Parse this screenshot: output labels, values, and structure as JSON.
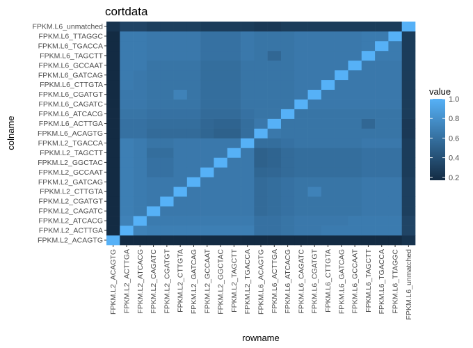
{
  "chart_data": {
    "type": "heatmap",
    "title": "cortdata",
    "xlabel": "rowname",
    "ylabel": "colname",
    "x_categories": [
      "FPKM.L2_ACAGTG",
      "FPKM.L2_ACTTGA",
      "FPKM.L2_ATCACG",
      "FPKM.L2_CAGATC",
      "FPKM.L2_CGATGT",
      "FPKM.L2_CTTGTA",
      "FPKM.L2_GATCAG",
      "FPKM.L2_GCCAAT",
      "FPKM.L2_GGCTAC",
      "FPKM.L2_TAGCTT",
      "FPKM.L2_TGACCA",
      "FPKM.L6_ACAGTG",
      "FPKM.L6_ACTTGA",
      "FPKM.L6_ATCACG",
      "FPKM.L6_CAGATC",
      "FPKM.L6_CGATGT",
      "FPKM.L6_CTTGTA",
      "FPKM.L6_GATCAG",
      "FPKM.L6_GCCAAT",
      "FPKM.L6_TAGCTT",
      "FPKM.L6_TGACCA",
      "FPKM.L6_TTAGGC",
      "FPKM.L6_unmatched"
    ],
    "y_categories": [
      "FPKM.L2_ACAGTG",
      "FPKM.L2_ACTTGA",
      "FPKM.L2_ATCACG",
      "FPKM.L2_CAGATC",
      "FPKM.L2_CGATGT",
      "FPKM.L2_CTTGTA",
      "FPKM.L2_GATCAG",
      "FPKM.L2_GCCAAT",
      "FPKM.L2_GGCTAC",
      "FPKM.L2_TAGCTT",
      "FPKM.L2_TGACCA",
      "FPKM.L6_ACAGTG",
      "FPKM.L6_ACTTGA",
      "FPKM.L6_ATCACG",
      "FPKM.L6_CAGATC",
      "FPKM.L6_CGATGT",
      "FPKM.L6_CTTGTA",
      "FPKM.L6_GATCAG",
      "FPKM.L6_GCCAAT",
      "FPKM.L6_TAGCTT",
      "FPKM.L6_TGACCA",
      "FPKM.L6_TTAGGC",
      "FPKM.L6_unmatched"
    ],
    "values": [
      [
        1.0,
        0.2,
        0.2,
        0.2,
        0.2,
        0.2,
        0.2,
        0.2,
        0.2,
        0.2,
        0.2,
        0.2,
        0.2,
        0.2,
        0.2,
        0.2,
        0.2,
        0.2,
        0.2,
        0.2,
        0.2,
        0.2,
        0.25
      ],
      [
        0.2,
        1.0,
        0.72,
        0.7,
        0.7,
        0.7,
        0.7,
        0.7,
        0.7,
        0.7,
        0.7,
        0.62,
        0.62,
        0.64,
        0.66,
        0.66,
        0.68,
        0.68,
        0.68,
        0.68,
        0.68,
        0.68,
        0.35
      ],
      [
        0.2,
        0.72,
        1.0,
        0.68,
        0.68,
        0.68,
        0.68,
        0.68,
        0.68,
        0.68,
        0.68,
        0.62,
        0.62,
        0.64,
        0.66,
        0.66,
        0.66,
        0.66,
        0.68,
        0.68,
        0.68,
        0.68,
        0.35
      ],
      [
        0.2,
        0.7,
        0.68,
        1.0,
        0.66,
        0.66,
        0.66,
        0.66,
        0.66,
        0.66,
        0.66,
        0.58,
        0.6,
        0.62,
        0.64,
        0.64,
        0.64,
        0.64,
        0.64,
        0.66,
        0.66,
        0.66,
        0.32
      ],
      [
        0.2,
        0.7,
        0.68,
        0.66,
        1.0,
        0.66,
        0.66,
        0.66,
        0.66,
        0.66,
        0.66,
        0.58,
        0.6,
        0.62,
        0.64,
        0.64,
        0.64,
        0.64,
        0.64,
        0.66,
        0.66,
        0.66,
        0.32
      ],
      [
        0.2,
        0.7,
        0.68,
        0.66,
        0.66,
        1.0,
        0.66,
        0.66,
        0.66,
        0.66,
        0.66,
        0.58,
        0.6,
        0.62,
        0.64,
        0.72,
        0.64,
        0.64,
        0.64,
        0.66,
        0.66,
        0.66,
        0.32
      ],
      [
        0.2,
        0.7,
        0.68,
        0.66,
        0.66,
        0.66,
        1.0,
        0.66,
        0.66,
        0.66,
        0.66,
        0.58,
        0.6,
        0.62,
        0.64,
        0.64,
        0.64,
        0.64,
        0.64,
        0.66,
        0.66,
        0.66,
        0.32
      ],
      [
        0.2,
        0.7,
        0.68,
        0.62,
        0.62,
        0.66,
        0.66,
        1.0,
        0.66,
        0.66,
        0.66,
        0.55,
        0.56,
        0.58,
        0.6,
        0.6,
        0.6,
        0.6,
        0.6,
        0.62,
        0.62,
        0.62,
        0.3
      ],
      [
        0.2,
        0.7,
        0.68,
        0.62,
        0.62,
        0.66,
        0.66,
        0.66,
        1.0,
        0.66,
        0.66,
        0.52,
        0.54,
        0.58,
        0.6,
        0.6,
        0.6,
        0.6,
        0.6,
        0.62,
        0.62,
        0.62,
        0.3
      ],
      [
        0.2,
        0.7,
        0.68,
        0.6,
        0.6,
        0.66,
        0.66,
        0.66,
        0.66,
        1.0,
        0.66,
        0.52,
        0.54,
        0.58,
        0.6,
        0.6,
        0.6,
        0.6,
        0.6,
        0.62,
        0.62,
        0.62,
        0.3
      ],
      [
        0.2,
        0.7,
        0.68,
        0.64,
        0.64,
        0.66,
        0.66,
        0.66,
        0.66,
        0.66,
        1.0,
        0.6,
        0.6,
        0.62,
        0.64,
        0.64,
        0.64,
        0.64,
        0.64,
        0.66,
        0.66,
        0.66,
        0.3
      ],
      [
        0.2,
        0.62,
        0.62,
        0.58,
        0.58,
        0.58,
        0.58,
        0.55,
        0.52,
        0.52,
        0.6,
        1.0,
        0.66,
        0.64,
        0.64,
        0.64,
        0.64,
        0.64,
        0.64,
        0.64,
        0.64,
        0.64,
        0.28
      ],
      [
        0.2,
        0.62,
        0.62,
        0.6,
        0.6,
        0.6,
        0.6,
        0.56,
        0.54,
        0.54,
        0.6,
        0.66,
        1.0,
        0.64,
        0.64,
        0.64,
        0.64,
        0.64,
        0.64,
        0.56,
        0.64,
        0.64,
        0.28
      ],
      [
        0.2,
        0.64,
        0.64,
        0.62,
        0.62,
        0.62,
        0.62,
        0.58,
        0.58,
        0.58,
        0.62,
        0.64,
        0.64,
        1.0,
        0.64,
        0.64,
        0.64,
        0.64,
        0.64,
        0.64,
        0.64,
        0.64,
        0.3
      ],
      [
        0.2,
        0.66,
        0.66,
        0.64,
        0.64,
        0.64,
        0.64,
        0.6,
        0.6,
        0.6,
        0.64,
        0.64,
        0.64,
        0.64,
        1.0,
        0.66,
        0.66,
        0.66,
        0.66,
        0.66,
        0.66,
        0.66,
        0.3
      ],
      [
        0.2,
        0.66,
        0.66,
        0.64,
        0.64,
        0.72,
        0.64,
        0.6,
        0.6,
        0.6,
        0.64,
        0.64,
        0.64,
        0.64,
        0.66,
        1.0,
        0.66,
        0.66,
        0.66,
        0.66,
        0.66,
        0.66,
        0.3
      ],
      [
        0.2,
        0.68,
        0.66,
        0.64,
        0.64,
        0.64,
        0.64,
        0.6,
        0.6,
        0.6,
        0.64,
        0.64,
        0.64,
        0.64,
        0.66,
        0.66,
        1.0,
        0.66,
        0.66,
        0.66,
        0.66,
        0.66,
        0.3
      ],
      [
        0.2,
        0.68,
        0.66,
        0.64,
        0.64,
        0.64,
        0.64,
        0.6,
        0.6,
        0.6,
        0.64,
        0.64,
        0.64,
        0.64,
        0.66,
        0.66,
        0.66,
        1.0,
        0.66,
        0.66,
        0.66,
        0.66,
        0.3
      ],
      [
        0.2,
        0.68,
        0.68,
        0.64,
        0.64,
        0.64,
        0.64,
        0.6,
        0.6,
        0.6,
        0.64,
        0.64,
        0.64,
        0.64,
        0.66,
        0.66,
        0.66,
        0.66,
        1.0,
        0.66,
        0.66,
        0.66,
        0.3
      ],
      [
        0.2,
        0.68,
        0.68,
        0.66,
        0.66,
        0.66,
        0.66,
        0.62,
        0.62,
        0.62,
        0.66,
        0.64,
        0.56,
        0.64,
        0.66,
        0.66,
        0.66,
        0.66,
        0.66,
        1.0,
        0.68,
        0.68,
        0.3
      ],
      [
        0.2,
        0.68,
        0.68,
        0.66,
        0.66,
        0.66,
        0.66,
        0.62,
        0.62,
        0.62,
        0.66,
        0.64,
        0.64,
        0.64,
        0.66,
        0.66,
        0.66,
        0.66,
        0.66,
        0.68,
        1.0,
        0.68,
        0.3
      ],
      [
        0.2,
        0.68,
        0.68,
        0.66,
        0.66,
        0.66,
        0.66,
        0.62,
        0.62,
        0.62,
        0.66,
        0.64,
        0.64,
        0.64,
        0.66,
        0.66,
        0.66,
        0.66,
        0.66,
        0.68,
        0.68,
        1.0,
        0.3
      ],
      [
        0.25,
        0.35,
        0.35,
        0.32,
        0.32,
        0.32,
        0.32,
        0.3,
        0.3,
        0.3,
        0.3,
        0.28,
        0.28,
        0.3,
        0.3,
        0.3,
        0.3,
        0.3,
        0.3,
        0.3,
        0.3,
        0.3,
        1.0
      ]
    ],
    "legend": {
      "title": "value",
      "ticks": [
        "0.2",
        "0.4",
        "0.6",
        "0.8",
        "1.0"
      ],
      "placement": "right",
      "low_color": "#132B43",
      "high_color": "#56B1F7"
    },
    "value_range": [
      0.2,
      1.0
    ],
    "grid": false
  }
}
